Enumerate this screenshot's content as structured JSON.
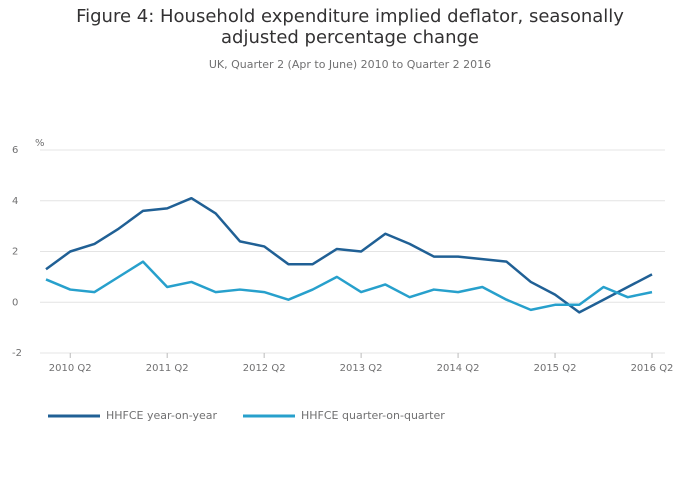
{
  "chart_data": {
    "type": "line",
    "title": "Figure 4: Household expenditure implied deflator, seasonally adjusted percentage change",
    "subtitle": "UK, Quarter 2 (Apr to June) 2010 to Quarter 2 2016",
    "y_label": "%",
    "categories": [
      null,
      "2010 Q2",
      null,
      null,
      null,
      "2011 Q2",
      null,
      null,
      null,
      "2012 Q2",
      null,
      null,
      null,
      "2013 Q2",
      null,
      null,
      null,
      "2014 Q2",
      null,
      null,
      null,
      "2015 Q2",
      null,
      null,
      null,
      "2016 Q2"
    ],
    "series": [
      {
        "name": "HHFCE year-on-year",
        "color": "#206095",
        "values": [
          1.3,
          2.0,
          2.3,
          2.9,
          3.6,
          3.7,
          4.1,
          3.5,
          2.4,
          2.2,
          1.5,
          1.5,
          2.1,
          2.0,
          2.7,
          2.3,
          1.8,
          1.8,
          1.7,
          1.6,
          0.8,
          0.3,
          -0.4,
          0.1,
          0.6,
          1.1
        ]
      },
      {
        "name": "HHFCE quarter-on-quarter",
        "color": "#27a0cc",
        "values": [
          0.9,
          0.5,
          0.4,
          1.0,
          1.6,
          0.6,
          0.8,
          0.4,
          0.5,
          0.4,
          0.1,
          0.5,
          1.0,
          0.4,
          0.7,
          0.2,
          0.5,
          0.4,
          0.6,
          0.1,
          -0.3,
          -0.1,
          -0.1,
          0.6,
          0.2,
          0.4
        ]
      }
    ],
    "ylim": [
      -2,
      6
    ],
    "yticks": [
      -2,
      0,
      2,
      4,
      6
    ],
    "grid": true,
    "legend": "bottom"
  }
}
